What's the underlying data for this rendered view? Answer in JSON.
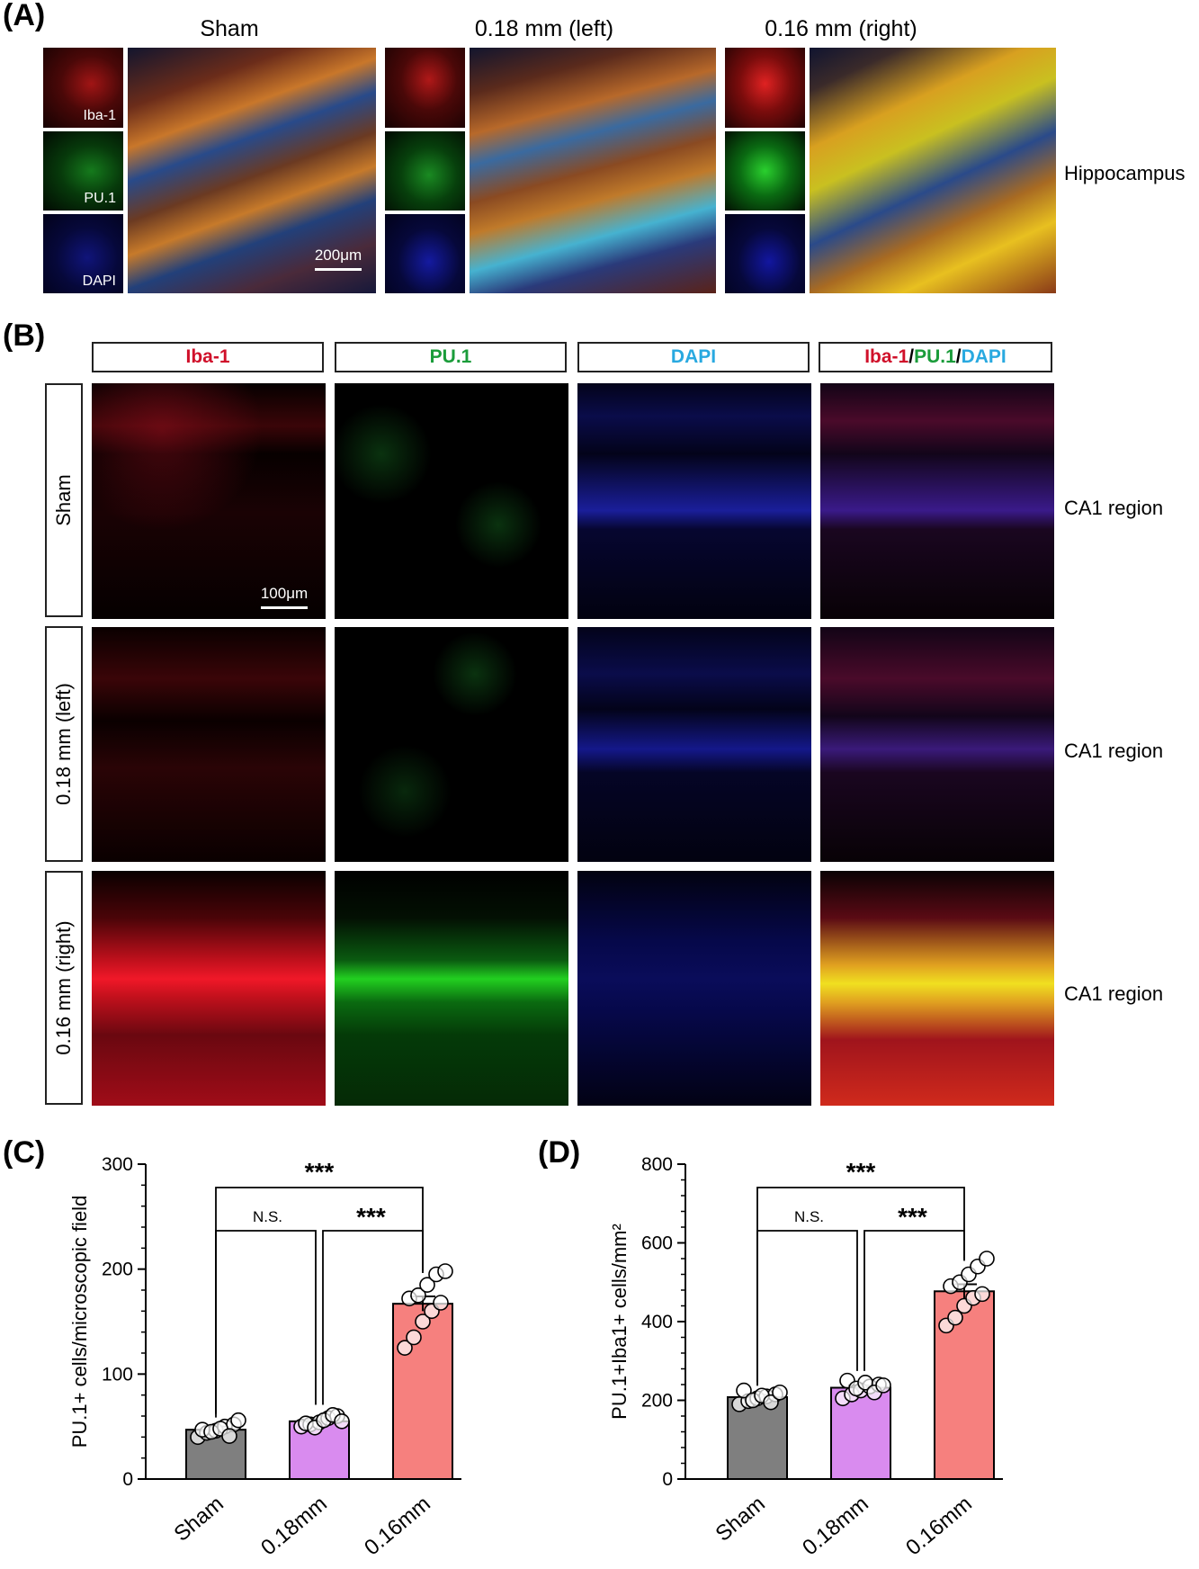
{
  "panel_a": {
    "label": "(A)",
    "columns": [
      "Sham",
      "0.18 mm (left)",
      "0.16 mm (right)"
    ],
    "channels": [
      "Iba-1",
      "PU.1",
      "DAPI"
    ],
    "scale": "200μm",
    "region": "Hippocampus"
  },
  "panel_b": {
    "label": "(B)",
    "headers": {
      "iba": "Iba-1",
      "pu1": "PU.1",
      "dapi": "DAPI",
      "slash": "/"
    },
    "rows": [
      "Sham",
      "0.18 mm (left)",
      "0.16 mm (right)"
    ],
    "region": "CA1 region",
    "scale": "100μm",
    "colors": {
      "iba": "#d0102a",
      "pu1": "#1a9c3a",
      "dapi": "#29a9e0"
    }
  },
  "panel_c": {
    "label": "(C)"
  },
  "panel_d": {
    "label": "(D)"
  },
  "chart_data": [
    {
      "type": "bar",
      "categories": [
        "Sham",
        "0.18mm",
        "0.16mm"
      ],
      "values": [
        47,
        55,
        167
      ],
      "sem": [
        3,
        2,
        7
      ],
      "points": [
        [
          40,
          44,
          46,
          50,
          52,
          47,
          45,
          48,
          41,
          56
        ],
        [
          50,
          52,
          54,
          58,
          60,
          53,
          49,
          56,
          61,
          55
        ],
        [
          125,
          135,
          150,
          160,
          168,
          172,
          175,
          185,
          195,
          198
        ]
      ],
      "colors": [
        "#7f7f7f",
        "#d98bef",
        "#f6807e"
      ],
      "ylabel": "PU.1+ cells/microscopic field",
      "ylim": [
        0,
        300
      ],
      "yticks": [
        0,
        100,
        200,
        300
      ],
      "significance": [
        {
          "pair": [
            0,
            2
          ],
          "label": "***"
        },
        {
          "pair": [
            0,
            1
          ],
          "label": "N.S."
        },
        {
          "pair": [
            1,
            2
          ],
          "label": "***"
        }
      ]
    },
    {
      "type": "bar",
      "categories": [
        "Sham",
        "0.18mm",
        "0.16mm"
      ],
      "values": [
        208,
        232,
        477
      ],
      "sem": [
        6,
        6,
        18
      ],
      "points": [
        [
          190,
          198,
          205,
          210,
          215,
          225,
          200,
          212,
          195,
          220
        ],
        [
          205,
          215,
          225,
          235,
          240,
          250,
          230,
          245,
          220,
          238
        ],
        [
          390,
          410,
          440,
          460,
          470,
          490,
          500,
          520,
          540,
          560
        ]
      ],
      "colors": [
        "#7f7f7f",
        "#d98bef",
        "#f6807e"
      ],
      "ylabel": "PU.1+Iba1+ cells/mm²",
      "ylim": [
        0,
        800
      ],
      "yticks": [
        0,
        200,
        400,
        600,
        800
      ],
      "significance": [
        {
          "pair": [
            0,
            2
          ],
          "label": "***"
        },
        {
          "pair": [
            0,
            1
          ],
          "label": "N.S."
        },
        {
          "pair": [
            1,
            2
          ],
          "label": "***"
        }
      ]
    }
  ]
}
